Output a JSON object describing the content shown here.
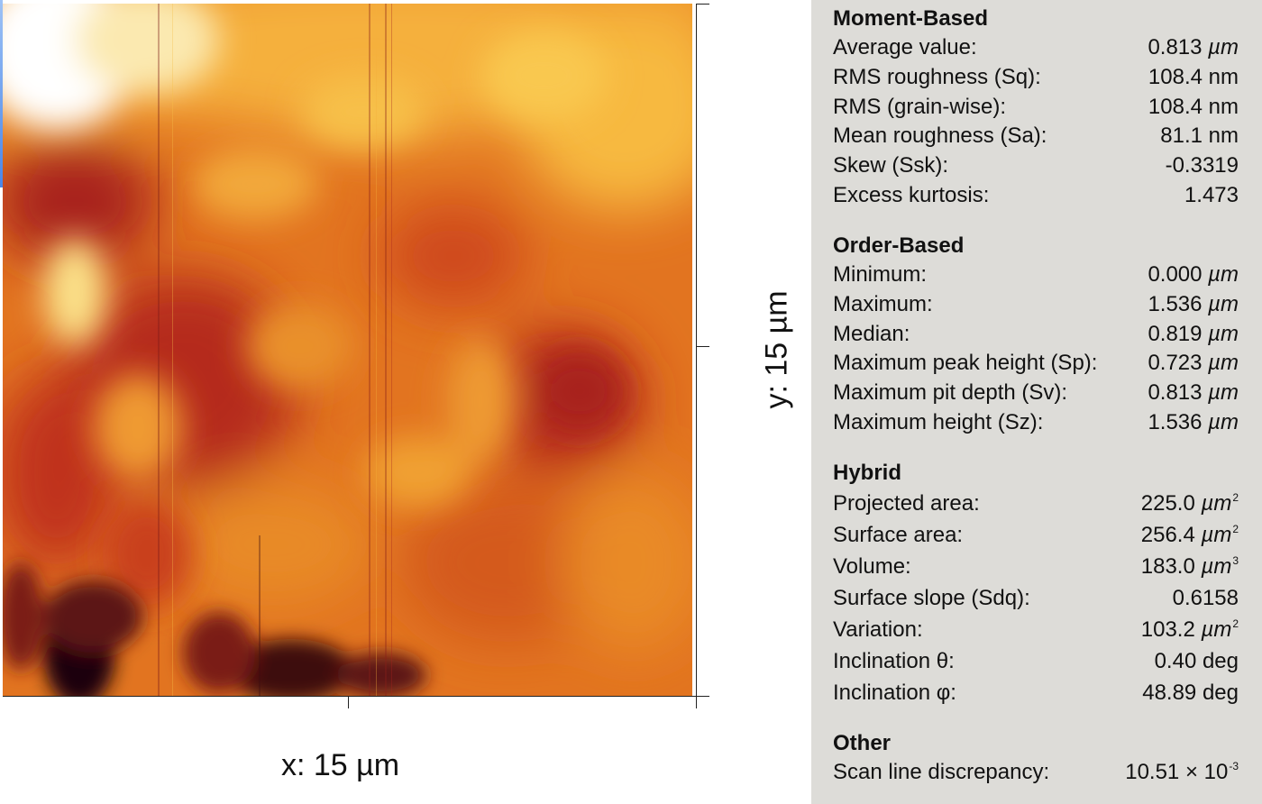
{
  "image": {
    "x_label": "x: 15 µm",
    "y_label": "y: 15 µm",
    "colormap": "afmhot",
    "colors": {
      "low": "#1a0508",
      "dark": "#5c1416",
      "mid_low": "#c0331d",
      "mid": "#e57a21",
      "high": "#f7b43a",
      "top": "#fbeeb0",
      "white": "#ffffff"
    }
  },
  "stats": {
    "moment": {
      "title": "Moment-Based",
      "rows": [
        {
          "label": "Average value:",
          "value": "0.813",
          "unit": "µm"
        },
        {
          "label": "RMS roughness (Sq):",
          "value": "108.4 nm"
        },
        {
          "label": "RMS (grain-wise):",
          "value": "108.4 nm"
        },
        {
          "label": "Mean roughness (Sa):",
          "value": "81.1 nm"
        },
        {
          "label": "Skew (Ssk):",
          "value": "-0.3319"
        },
        {
          "label": "Excess kurtosis:",
          "value": "1.473"
        }
      ]
    },
    "order": {
      "title": "Order-Based",
      "rows": [
        {
          "label": "Minimum:",
          "value": "0.000",
          "unit": "µm"
        },
        {
          "label": "Maximum:",
          "value": "1.536",
          "unit": "µm"
        },
        {
          "label": "Median:",
          "value": "0.819",
          "unit": "µm"
        },
        {
          "label": "Maximum peak height (Sp):",
          "value": "0.723",
          "unit": "µm"
        },
        {
          "label": "Maximum pit depth (Sv):",
          "value": "0.813",
          "unit": "µm"
        },
        {
          "label": "Maximum height (Sz):",
          "value": "1.536",
          "unit": "µm"
        }
      ]
    },
    "hybrid": {
      "title": "Hybrid",
      "rows": [
        {
          "label": "Projected area:",
          "value": "225.0",
          "unit": "µm",
          "sup": "2"
        },
        {
          "label": "Surface area:",
          "value": "256.4",
          "unit": "µm",
          "sup": "2"
        },
        {
          "label": "Volume:",
          "value": "183.0",
          "unit": "µm",
          "sup": "3"
        },
        {
          "label": "Surface slope (Sdq):",
          "value": "0.6158"
        },
        {
          "label": "Variation:",
          "value": "103.2",
          "unit": "µm",
          "sup": "2"
        },
        {
          "label": "Inclination θ:",
          "value": "0.40 deg"
        },
        {
          "label": "Inclination φ:",
          "value": "48.89 deg"
        }
      ]
    },
    "other": {
      "title": "Other",
      "rows": [
        {
          "label": "Scan line discrepancy:",
          "value": "10.51 × 10",
          "sup": "-3"
        }
      ]
    }
  }
}
